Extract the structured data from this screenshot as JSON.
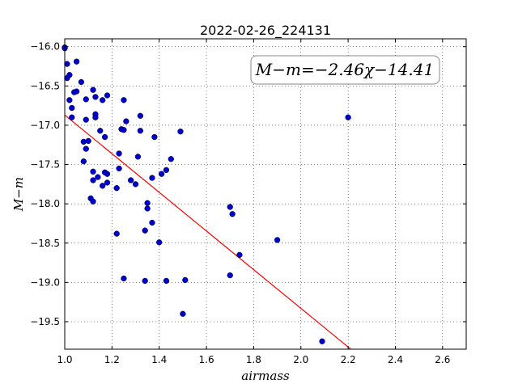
{
  "chart_data": {
    "type": "scatter",
    "title": "2022-02-26_224131",
    "xlabel": "airmass",
    "ylabel": "M−m",
    "xlim": [
      1.0,
      2.7
    ],
    "ylim": [
      -19.85,
      -15.9
    ],
    "y_inverted": true,
    "grid": true,
    "x_ticks": [
      1.0,
      1.2,
      1.4,
      1.6,
      1.8,
      2.0,
      2.2,
      2.4,
      2.6
    ],
    "x_tick_labels": [
      "1.0",
      "1.2",
      "1.4",
      "1.6",
      "1.8",
      "2.0",
      "2.2",
      "2.4",
      "2.6"
    ],
    "y_ticks": [
      -16.0,
      -16.5,
      -17.0,
      -17.5,
      -18.0,
      -18.5,
      -19.0,
      -19.5
    ],
    "y_tick_labels": [
      "−16.0",
      "−16.5",
      "−17.0",
      "−17.5",
      "−18.0",
      "−18.5",
      "−19.0",
      "−19.5"
    ],
    "annotation": "M−m=−2.46χ−14.41",
    "fit": {
      "slope": -2.46,
      "intercept": -14.41,
      "x_range": [
        1.0,
        2.21
      ],
      "color": "#ff0000"
    },
    "series": [
      {
        "color": "#0000cc",
        "points": [
          [
            1.0,
            -16.01
          ],
          [
            1.0,
            -16.02
          ],
          [
            1.01,
            -16.22
          ],
          [
            1.01,
            -16.4
          ],
          [
            1.02,
            -16.36
          ],
          [
            1.02,
            -16.68
          ],
          [
            1.03,
            -16.78
          ],
          [
            1.03,
            -16.9
          ],
          [
            1.04,
            -16.58
          ],
          [
            1.05,
            -16.19
          ],
          [
            1.05,
            -16.57
          ],
          [
            1.07,
            -16.45
          ],
          [
            1.08,
            -17.21
          ],
          [
            1.08,
            -17.46
          ],
          [
            1.09,
            -16.67
          ],
          [
            1.09,
            -16.93
          ],
          [
            1.09,
            -17.3
          ],
          [
            1.1,
            -17.2
          ],
          [
            1.11,
            -17.93
          ],
          [
            1.12,
            -16.55
          ],
          [
            1.12,
            -17.59
          ],
          [
            1.12,
            -17.7
          ],
          [
            1.12,
            -17.97
          ],
          [
            1.13,
            -16.64
          ],
          [
            1.13,
            -16.86
          ],
          [
            1.13,
            -16.9
          ],
          [
            1.14,
            -17.66
          ],
          [
            1.15,
            -17.07
          ],
          [
            1.16,
            -16.68
          ],
          [
            1.16,
            -17.77
          ],
          [
            1.17,
            -17.15
          ],
          [
            1.17,
            -17.6
          ],
          [
            1.18,
            -16.62
          ],
          [
            1.18,
            -17.62
          ],
          [
            1.18,
            -17.73
          ],
          [
            1.22,
            -17.8
          ],
          [
            1.22,
            -18.38
          ],
          [
            1.23,
            -17.36
          ],
          [
            1.23,
            -17.55
          ],
          [
            1.24,
            -17.05
          ],
          [
            1.25,
            -17.06
          ],
          [
            1.25,
            -16.68
          ],
          [
            1.25,
            -18.95
          ],
          [
            1.26,
            -16.95
          ],
          [
            1.28,
            -17.7
          ],
          [
            1.3,
            -17.75
          ],
          [
            1.31,
            -17.4
          ],
          [
            1.32,
            -16.88
          ],
          [
            1.32,
            -17.07
          ],
          [
            1.34,
            -18.98
          ],
          [
            1.34,
            -18.34
          ],
          [
            1.35,
            -17.99
          ],
          [
            1.35,
            -18.06
          ],
          [
            1.37,
            -18.24
          ],
          [
            1.37,
            -17.67
          ],
          [
            1.38,
            -17.15
          ],
          [
            1.4,
            -18.49
          ],
          [
            1.41,
            -17.62
          ],
          [
            1.43,
            -17.57
          ],
          [
            1.43,
            -18.98
          ],
          [
            1.45,
            -17.43
          ],
          [
            1.49,
            -17.08
          ],
          [
            1.5,
            -19.4
          ],
          [
            1.51,
            -18.97
          ],
          [
            1.7,
            -18.04
          ],
          [
            1.7,
            -18.91
          ],
          [
            1.71,
            -18.13
          ],
          [
            1.74,
            -18.65
          ],
          [
            1.9,
            -18.46
          ],
          [
            2.09,
            -19.75
          ],
          [
            2.2,
            -16.9
          ]
        ]
      }
    ]
  }
}
